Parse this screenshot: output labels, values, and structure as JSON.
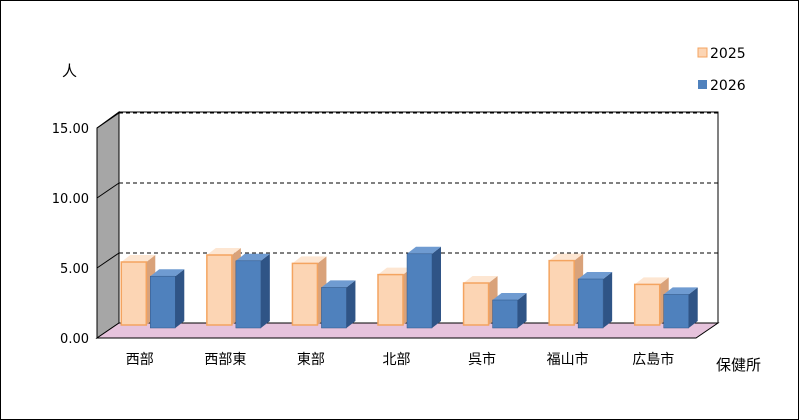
{
  "chart_data": {
    "type": "bar",
    "title": "",
    "ylabel": "人",
    "xlabel": "保健所",
    "ylim": [
      0,
      15
    ],
    "y_ticks": [
      "0.00",
      "5.00",
      "10.00",
      "15.00"
    ],
    "categories": [
      "西部",
      "西部東",
      "東部",
      "北部",
      "呉市",
      "福山市",
      "広島市"
    ],
    "series": [
      {
        "name": "2025",
        "values": [
          4.5,
          5.0,
          4.4,
          3.6,
          3.0,
          4.6,
          2.9
        ]
      },
      {
        "name": "2026",
        "values": [
          3.7,
          4.8,
          2.9,
          5.3,
          2.0,
          3.5,
          2.4
        ]
      }
    ],
    "grid": true,
    "legend_position": "top-right",
    "colors": {
      "series_2025_front": "#fcd5b4",
      "series_2025_top": "#fde6d2",
      "series_2025_side": "#d9a27a",
      "series_2025_edge": "#f4a460",
      "series_2026_front": "#4f81bd",
      "series_2026_top": "#6f9bd1",
      "series_2026_side": "#2f5486",
      "floor": "#e6c3dc",
      "left_wall": "#a6a6a6"
    }
  }
}
